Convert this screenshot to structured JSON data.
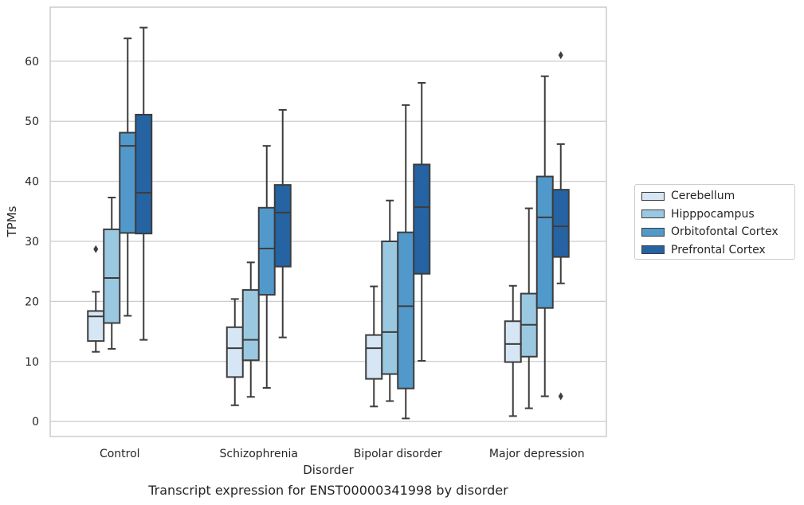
{
  "caption": "Transcript expression for ENST00000341998 by disorder",
  "chart_data": {
    "type": "box",
    "title": "",
    "xlabel": "Disorder",
    "ylabel": "TPMs",
    "ylim": [
      -2.5,
      69
    ],
    "yticks": [
      0,
      10,
      20,
      30,
      40,
      50,
      60
    ],
    "grid": "horizontal",
    "legend_position": "right",
    "categories": [
      "Control",
      "Schizophrenia",
      "Bipolar disorder",
      "Major depression"
    ],
    "series": [
      {
        "name": "Cerebellum",
        "color": "#d6e6f4",
        "boxes": [
          {
            "whislo": 11.6,
            "q1": 13.4,
            "med": 17.5,
            "q3": 18.4,
            "whishi": 21.6,
            "fliers": [
              28.7
            ]
          },
          {
            "whislo": 2.7,
            "q1": 7.4,
            "med": 12.2,
            "q3": 15.7,
            "whishi": 20.4,
            "fliers": []
          },
          {
            "whislo": 2.5,
            "q1": 7.1,
            "med": 12.2,
            "q3": 14.4,
            "whishi": 22.5,
            "fliers": []
          },
          {
            "whislo": 0.9,
            "q1": 9.9,
            "med": 12.9,
            "q3": 16.7,
            "whishi": 22.6,
            "fliers": []
          }
        ]
      },
      {
        "name": "Hipppocampus",
        "color": "#9ac8e0",
        "boxes": [
          {
            "whislo": 12.1,
            "q1": 16.4,
            "med": 23.9,
            "q3": 32.0,
            "whishi": 37.3,
            "fliers": []
          },
          {
            "whislo": 4.1,
            "q1": 10.2,
            "med": 13.6,
            "q3": 21.9,
            "whishi": 26.5,
            "fliers": []
          },
          {
            "whislo": 3.4,
            "q1": 7.9,
            "med": 14.9,
            "q3": 30.0,
            "whishi": 36.8,
            "fliers": []
          },
          {
            "whislo": 2.2,
            "q1": 10.8,
            "med": 16.1,
            "q3": 21.3,
            "whishi": 35.5,
            "fliers": []
          }
        ]
      },
      {
        "name": "Orbitofontal Cortex",
        "color": "#5299cb",
        "boxes": [
          {
            "whislo": 17.6,
            "q1": 31.4,
            "med": 45.9,
            "q3": 48.1,
            "whishi": 63.8,
            "fliers": []
          },
          {
            "whislo": 5.6,
            "q1": 21.1,
            "med": 28.8,
            "q3": 35.6,
            "whishi": 45.9,
            "fliers": []
          },
          {
            "whislo": 0.5,
            "q1": 5.5,
            "med": 19.2,
            "q3": 31.5,
            "whishi": 52.7,
            "fliers": []
          },
          {
            "whislo": 4.2,
            "q1": 18.9,
            "med": 34.0,
            "q3": 40.8,
            "whishi": 57.5,
            "fliers": []
          }
        ]
      },
      {
        "name": "Prefrontal Cortex",
        "color": "#2563a3",
        "boxes": [
          {
            "whislo": 13.6,
            "q1": 31.3,
            "med": 38.1,
            "q3": 51.1,
            "whishi": 65.6,
            "fliers": []
          },
          {
            "whislo": 14.0,
            "q1": 25.8,
            "med": 34.8,
            "q3": 39.4,
            "whishi": 51.9,
            "fliers": []
          },
          {
            "whislo": 10.1,
            "q1": 24.6,
            "med": 35.7,
            "q3": 42.8,
            "whishi": 56.4,
            "fliers": []
          },
          {
            "whislo": 23.0,
            "q1": 27.4,
            "med": 32.5,
            "q3": 38.6,
            "whishi": 46.2,
            "fliers": [
              61.0,
              4.2
            ]
          }
        ]
      }
    ]
  }
}
